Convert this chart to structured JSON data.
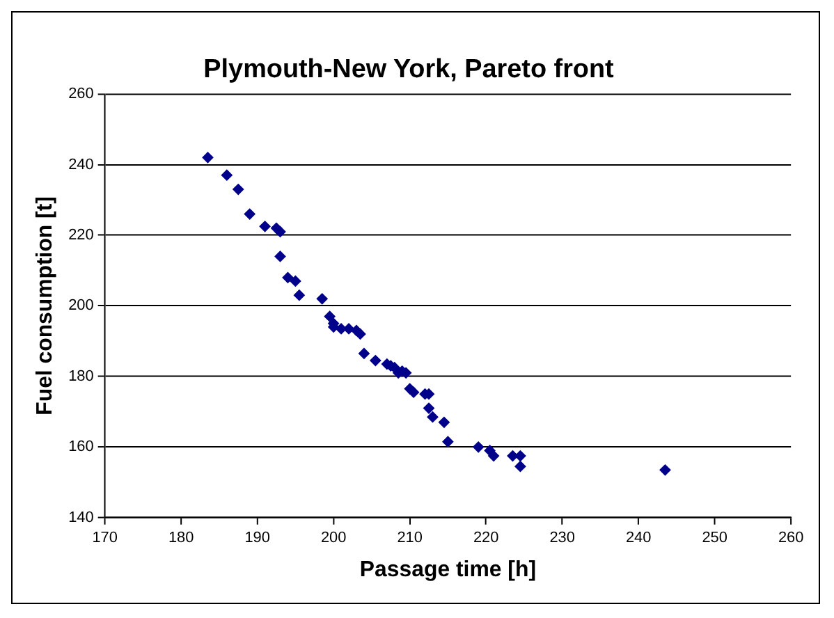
{
  "chart_data": {
    "type": "scatter",
    "title": "Plymouth-New York, Pareto front",
    "xlabel": "Passage time [h]",
    "ylabel": "Fuel consumption [t]",
    "series": [
      {
        "color": "#00008b",
        "x": [
          183.5,
          186,
          187.5,
          189,
          191,
          192.5,
          193,
          193,
          194,
          195,
          195.5,
          198.5,
          199.5,
          200,
          200,
          201,
          202,
          203,
          203.5,
          204,
          205.5,
          207,
          207.5,
          208,
          208.5,
          209,
          209.5,
          210,
          210.5,
          212,
          212.5,
          212.5,
          213,
          214.5,
          215,
          219,
          220.5,
          221,
          223.5,
          224.5,
          224.5,
          243.5
        ],
        "values": [
          242,
          237,
          233,
          226,
          222.5,
          222,
          221,
          214,
          208,
          207,
          203,
          202,
          197,
          195,
          194,
          193.5,
          193.5,
          193,
          192,
          186.5,
          184.5,
          183.5,
          183,
          182.5,
          181,
          181.5,
          181,
          176.5,
          175.5,
          175,
          175,
          171,
          168.5,
          167,
          161.5,
          160,
          159,
          157.5,
          157.5,
          157.5,
          154.5,
          153.5
        ]
      }
    ],
    "xlim": [
      170,
      260
    ],
    "xticks": [
      170,
      180,
      190,
      200,
      210,
      220,
      230,
      240,
      250,
      260
    ],
    "ylim": [
      140,
      260
    ],
    "yticks": [
      140,
      160,
      180,
      200,
      220,
      240,
      260
    ],
    "grid": "y",
    "legend": false,
    "marker": "diamond"
  }
}
